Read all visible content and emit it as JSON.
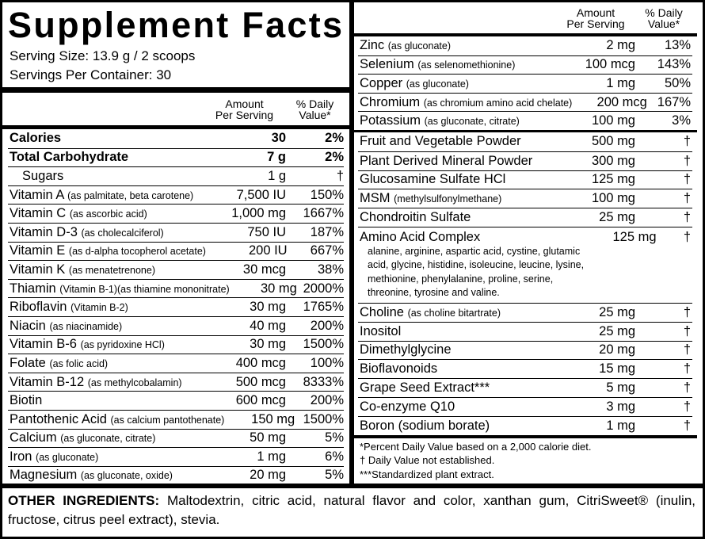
{
  "title": "Supplement Facts",
  "serving_size": "Serving Size: 13.9 g / 2 scoops",
  "servings_per_container": "Servings Per Container: 30",
  "left_header": {
    "amount": [
      "Amount",
      "Per Serving"
    ],
    "dv": [
      "% Daily",
      "Value*"
    ]
  },
  "left_rows": [
    {
      "name": "Calories",
      "amount": "30",
      "dv": "2%"
    },
    {
      "name": "Total Carbohydrate",
      "amount": "7 g",
      "dv": "2%"
    },
    {
      "name": "Sugars",
      "amount": "1 g",
      "dv": "†"
    },
    {
      "name": "Vitamin A",
      "note": "(as palmitate, beta carotene)",
      "amount": "7,500 IU",
      "dv": "150%"
    },
    {
      "name": "Vitamin C",
      "note": "(as ascorbic acid)",
      "amount": "1,000 mg",
      "dv": "1667%"
    },
    {
      "name": "Vitamin D-3",
      "note": "(as cholecalciferol)",
      "amount": "750 IU",
      "dv": "187%"
    },
    {
      "name": "Vitamin E",
      "note": "(as d-alpha tocopherol acetate)",
      "amount": "200 IU",
      "dv": "667%"
    },
    {
      "name": "Vitamin K",
      "note": "(as menatetrenone)",
      "amount": "30 mcg",
      "dv": "38%"
    },
    {
      "name": "Thiamin",
      "note": "(Vitamin B-1)(as thiamine mononitrate)",
      "amount": "30 mg",
      "dv": "2000%"
    },
    {
      "name": "Riboflavin",
      "note": "(Vitamin B-2)",
      "amount": "30 mg",
      "dv": "1765%"
    },
    {
      "name": "Niacin",
      "note": "(as niacinamide)",
      "amount": "40 mg",
      "dv": "200%"
    },
    {
      "name": "Vitamin B-6",
      "note": "(as pyridoxine HCl)",
      "amount": "30 mg",
      "dv": "1500%"
    },
    {
      "name": "Folate",
      "note": "(as folic acid)",
      "amount": "400 mcg",
      "dv": "100%"
    },
    {
      "name": "Vitamin B-12",
      "note": "(as methylcobalamin)",
      "amount": "500 mcg",
      "dv": "8333%"
    },
    {
      "name": "Biotin",
      "amount": "600 mcg",
      "dv": "200%"
    },
    {
      "name": "Pantothenic Acid",
      "note": "(as calcium pantothenate)",
      "amount": "150 mg",
      "dv": "1500%"
    },
    {
      "name": "Calcium",
      "note": "(as gluconate, citrate)",
      "amount": "50 mg",
      "dv": "5%"
    },
    {
      "name": "Iron",
      "note": "(as gluconate)",
      "amount": "1 mg",
      "dv": "6%"
    },
    {
      "name": "Magnesium",
      "note": "(as gluconate, oxide)",
      "amount": "20 mg",
      "dv": "5%"
    }
  ],
  "right_header": {
    "amount": [
      "Amount",
      "Per Serving"
    ],
    "dv": [
      "% Daily",
      "Value*"
    ]
  },
  "minerals": [
    {
      "name": "Zinc",
      "note": "(as gluconate)",
      "amount": "2 mg",
      "dv": "13%"
    },
    {
      "name": "Selenium",
      "note": "(as selenomethionine)",
      "amount": "100 mcg",
      "dv": "143%"
    },
    {
      "name": "Copper",
      "note": "(as gluconate)",
      "amount": "1 mg",
      "dv": "50%"
    },
    {
      "name": "Chromium",
      "note": "(as chromium amino acid chelate)",
      "amount": "200 mcg",
      "dv": "167%"
    },
    {
      "name": "Potassium",
      "note": "(as gluconate, citrate)",
      "amount": "100 mg",
      "dv": "3%"
    }
  ],
  "other_nutrients": [
    {
      "name": "Fruit and Vegetable Powder",
      "amount": "500 mg",
      "dv": "†"
    },
    {
      "name": "Plant Derived Mineral Powder",
      "amount": "300 mg",
      "dv": "†"
    },
    {
      "name": "Glucosamine Sulfate HCl",
      "amount": "125 mg",
      "dv": "†"
    },
    {
      "name": "MSM",
      "note": "(methylsulfonylmethane)",
      "amount": "100 mg",
      "dv": "†"
    },
    {
      "name": "Chondroitin Sulfate",
      "amount": "25 mg",
      "dv": "†"
    },
    {
      "name": "Amino Acid Complex",
      "amount": "125 mg",
      "dv": "†",
      "details": "alanine, arginine, aspartic acid, cystine, glutamic acid, glycine, histidine, isoleucine, leucine, lysine, methionine, phenylalanine, proline, serine, threonine, tyrosine and valine."
    },
    {
      "name": "Choline",
      "note": "(as choline bitartrate)",
      "amount": "25 mg",
      "dv": "†"
    },
    {
      "name": "Inositol",
      "amount": "25 mg",
      "dv": "†"
    },
    {
      "name": "Dimethylglycine",
      "amount": "20 mg",
      "dv": "†"
    },
    {
      "name": "Bioflavonoids",
      "amount": "15 mg",
      "dv": "†"
    },
    {
      "name": "Grape Seed Extract***",
      "amount": "5 mg",
      "dv": "†"
    },
    {
      "name": "Co-enzyme Q10",
      "amount": "3 mg",
      "dv": "†"
    },
    {
      "name": "Boron (sodium borate)",
      "amount": "1 mg",
      "dv": "†"
    }
  ],
  "footnotes": [
    "*Percent Daily Value based on a 2,000 calorie diet.",
    "† Daily Value not established.",
    "***Standardized plant extract."
  ],
  "other_ingredients": {
    "label": "OTHER INGREDIENTS:",
    "text": "Maltodextrin, citric acid, natural flavor and color, xanthan gum, CitriSweet® (inulin, fructose, citrus peel extract), stevia."
  }
}
